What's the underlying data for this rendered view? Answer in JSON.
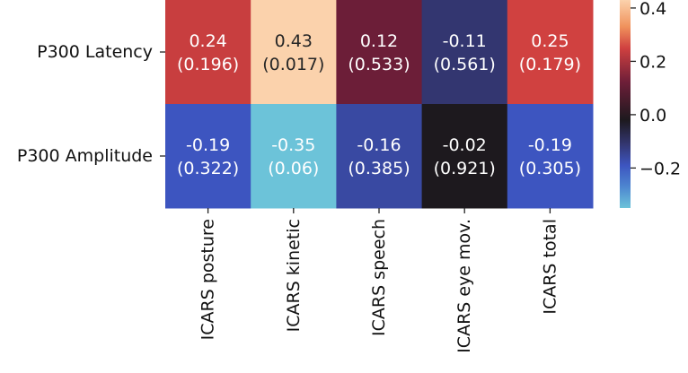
{
  "chart_data": {
    "type": "heatmap",
    "rows": [
      "P300 Latency",
      "P300 Amplitude"
    ],
    "columns": [
      "ICARS posture",
      "ICARS kinetic",
      "ICARS speech",
      "ICARS eye mov.",
      "ICARS total"
    ],
    "values": [
      [
        0.24,
        0.43,
        0.12,
        -0.11,
        0.25
      ],
      [
        -0.19,
        -0.35,
        -0.16,
        -0.02,
        -0.19
      ]
    ],
    "annotations": [
      [
        [
          "0.24",
          "(0.196)"
        ],
        [
          "0.43",
          "(0.017)"
        ],
        [
          "0.12",
          "(0.533)"
        ],
        [
          "-0.11",
          "(0.561)"
        ],
        [
          "0.25",
          "(0.179)"
        ]
      ],
      [
        [
          "-0.19",
          "(0.322)"
        ],
        [
          "-0.35",
          "(0.06)"
        ],
        [
          "-0.16",
          "(0.385)"
        ],
        [
          "-0.02",
          "(0.921)"
        ],
        [
          "-0.19",
          "(0.305)"
        ]
      ]
    ],
    "colorbar": {
      "range": [
        -0.35,
        0.43
      ],
      "ticks": [
        -0.2,
        0.0,
        0.2,
        0.4
      ],
      "tick_labels": [
        "−0.2",
        "0.0",
        "0.2",
        "0.4"
      ]
    },
    "colormap": "icefire",
    "colormap_stops": [
      [
        -0.35,
        "#6cc3d9"
      ],
      [
        -0.27,
        "#4d86d0"
      ],
      [
        -0.19,
        "#3d55c0"
      ],
      [
        -0.11,
        "#333670"
      ],
      [
        -0.02,
        "#1d191e"
      ],
      [
        0.12,
        "#6c1e38"
      ],
      [
        0.25,
        "#d04140"
      ],
      [
        0.33,
        "#f0925c"
      ],
      [
        0.43,
        "#fbd2ac"
      ]
    ]
  }
}
